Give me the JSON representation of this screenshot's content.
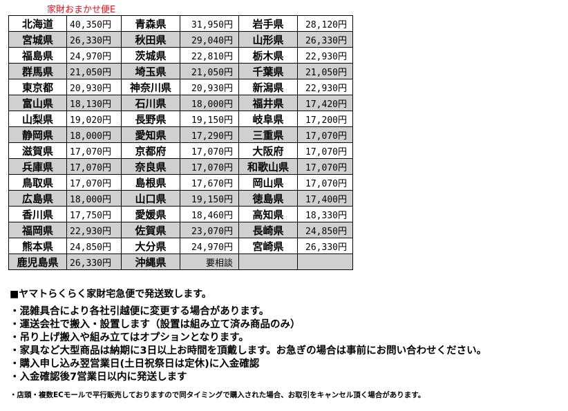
{
  "title": "家財おまかせ便E",
  "rows": [
    [
      "北海道",
      "40,350円",
      "青森県",
      "31,950円",
      "岩手県",
      "28,120円"
    ],
    [
      "宮城県",
      "26,330円",
      "秋田県",
      "29,040円",
      "山形県",
      "26,330円"
    ],
    [
      "福島県",
      "24,970円",
      "茨城県",
      "22,810円",
      "栃木県",
      "22,930円"
    ],
    [
      "群馬県",
      "21,050円",
      "埼玉県",
      "21,050円",
      "千葉県",
      "21,050円"
    ],
    [
      "東京都",
      "20,930円",
      "神奈川県",
      "20,930円",
      "新潟県",
      "22,930円"
    ],
    [
      "富山県",
      "18,130円",
      "石川県",
      "18,000円",
      "福井県",
      "17,420円"
    ],
    [
      "山梨県",
      "19,020円",
      "長野県",
      "19,150円",
      "岐阜県",
      "17,200円"
    ],
    [
      "静岡県",
      "18,000円",
      "愛知県",
      "17,290円",
      "三重県",
      "17,070円"
    ],
    [
      "滋賀県",
      "17,070円",
      "京都府",
      "17,070円",
      "大阪府",
      "17,070円"
    ],
    [
      "兵庫県",
      "17,070円",
      "奈良県",
      "17,070円",
      "和歌山県",
      "17,070円"
    ],
    [
      "鳥取県",
      "17,070円",
      "島根県",
      "17,670円",
      "岡山県",
      "17,070円"
    ],
    [
      "広島県",
      "18,000円",
      "山口県",
      "19,150円",
      "徳島県",
      "17,400円"
    ],
    [
      "香川県",
      "17,750円",
      "愛媛県",
      "18,460円",
      "高知県",
      "18,330円"
    ],
    [
      "福岡県",
      "22,930円",
      "佐賀県",
      "23,070円",
      "長崎県",
      "24,850円"
    ],
    [
      "熊本県",
      "24,850円",
      "大分県",
      "24,970円",
      "宮崎県",
      "26,330円"
    ],
    [
      "鹿児島県",
      "26,330円",
      "沖縄県",
      "要相談",
      "",
      ""
    ]
  ],
  "notes": {
    "heading": "■ヤマトらくらく家財宅急便で発送致します。",
    "bullets": [
      "・混雑具合により各社引越便に変更する場合があります。",
      "・運送会社で搬入・設置します（設置は組み立て済み商品のみ）",
      "・吊り上げ搬入や組み立てはオプションとなります。",
      "・家具など大型商品は納期に3日以上お時間を頂戴します。お急ぎの場合は事前にお問い合わせください。",
      "・購入申し込み翌営業日(土日祝祭日は定休)に入金確認",
      "・入金確認後7営業日以内に発送します"
    ],
    "small": "・店頭・複数ECモールで平行販売しておりますので同タイミングで購入された場合、お取引をキャンセル頂く場合があります。"
  },
  "colors": {
    "title": "#e8101a",
    "alt_row": "#d0d0d0"
  }
}
